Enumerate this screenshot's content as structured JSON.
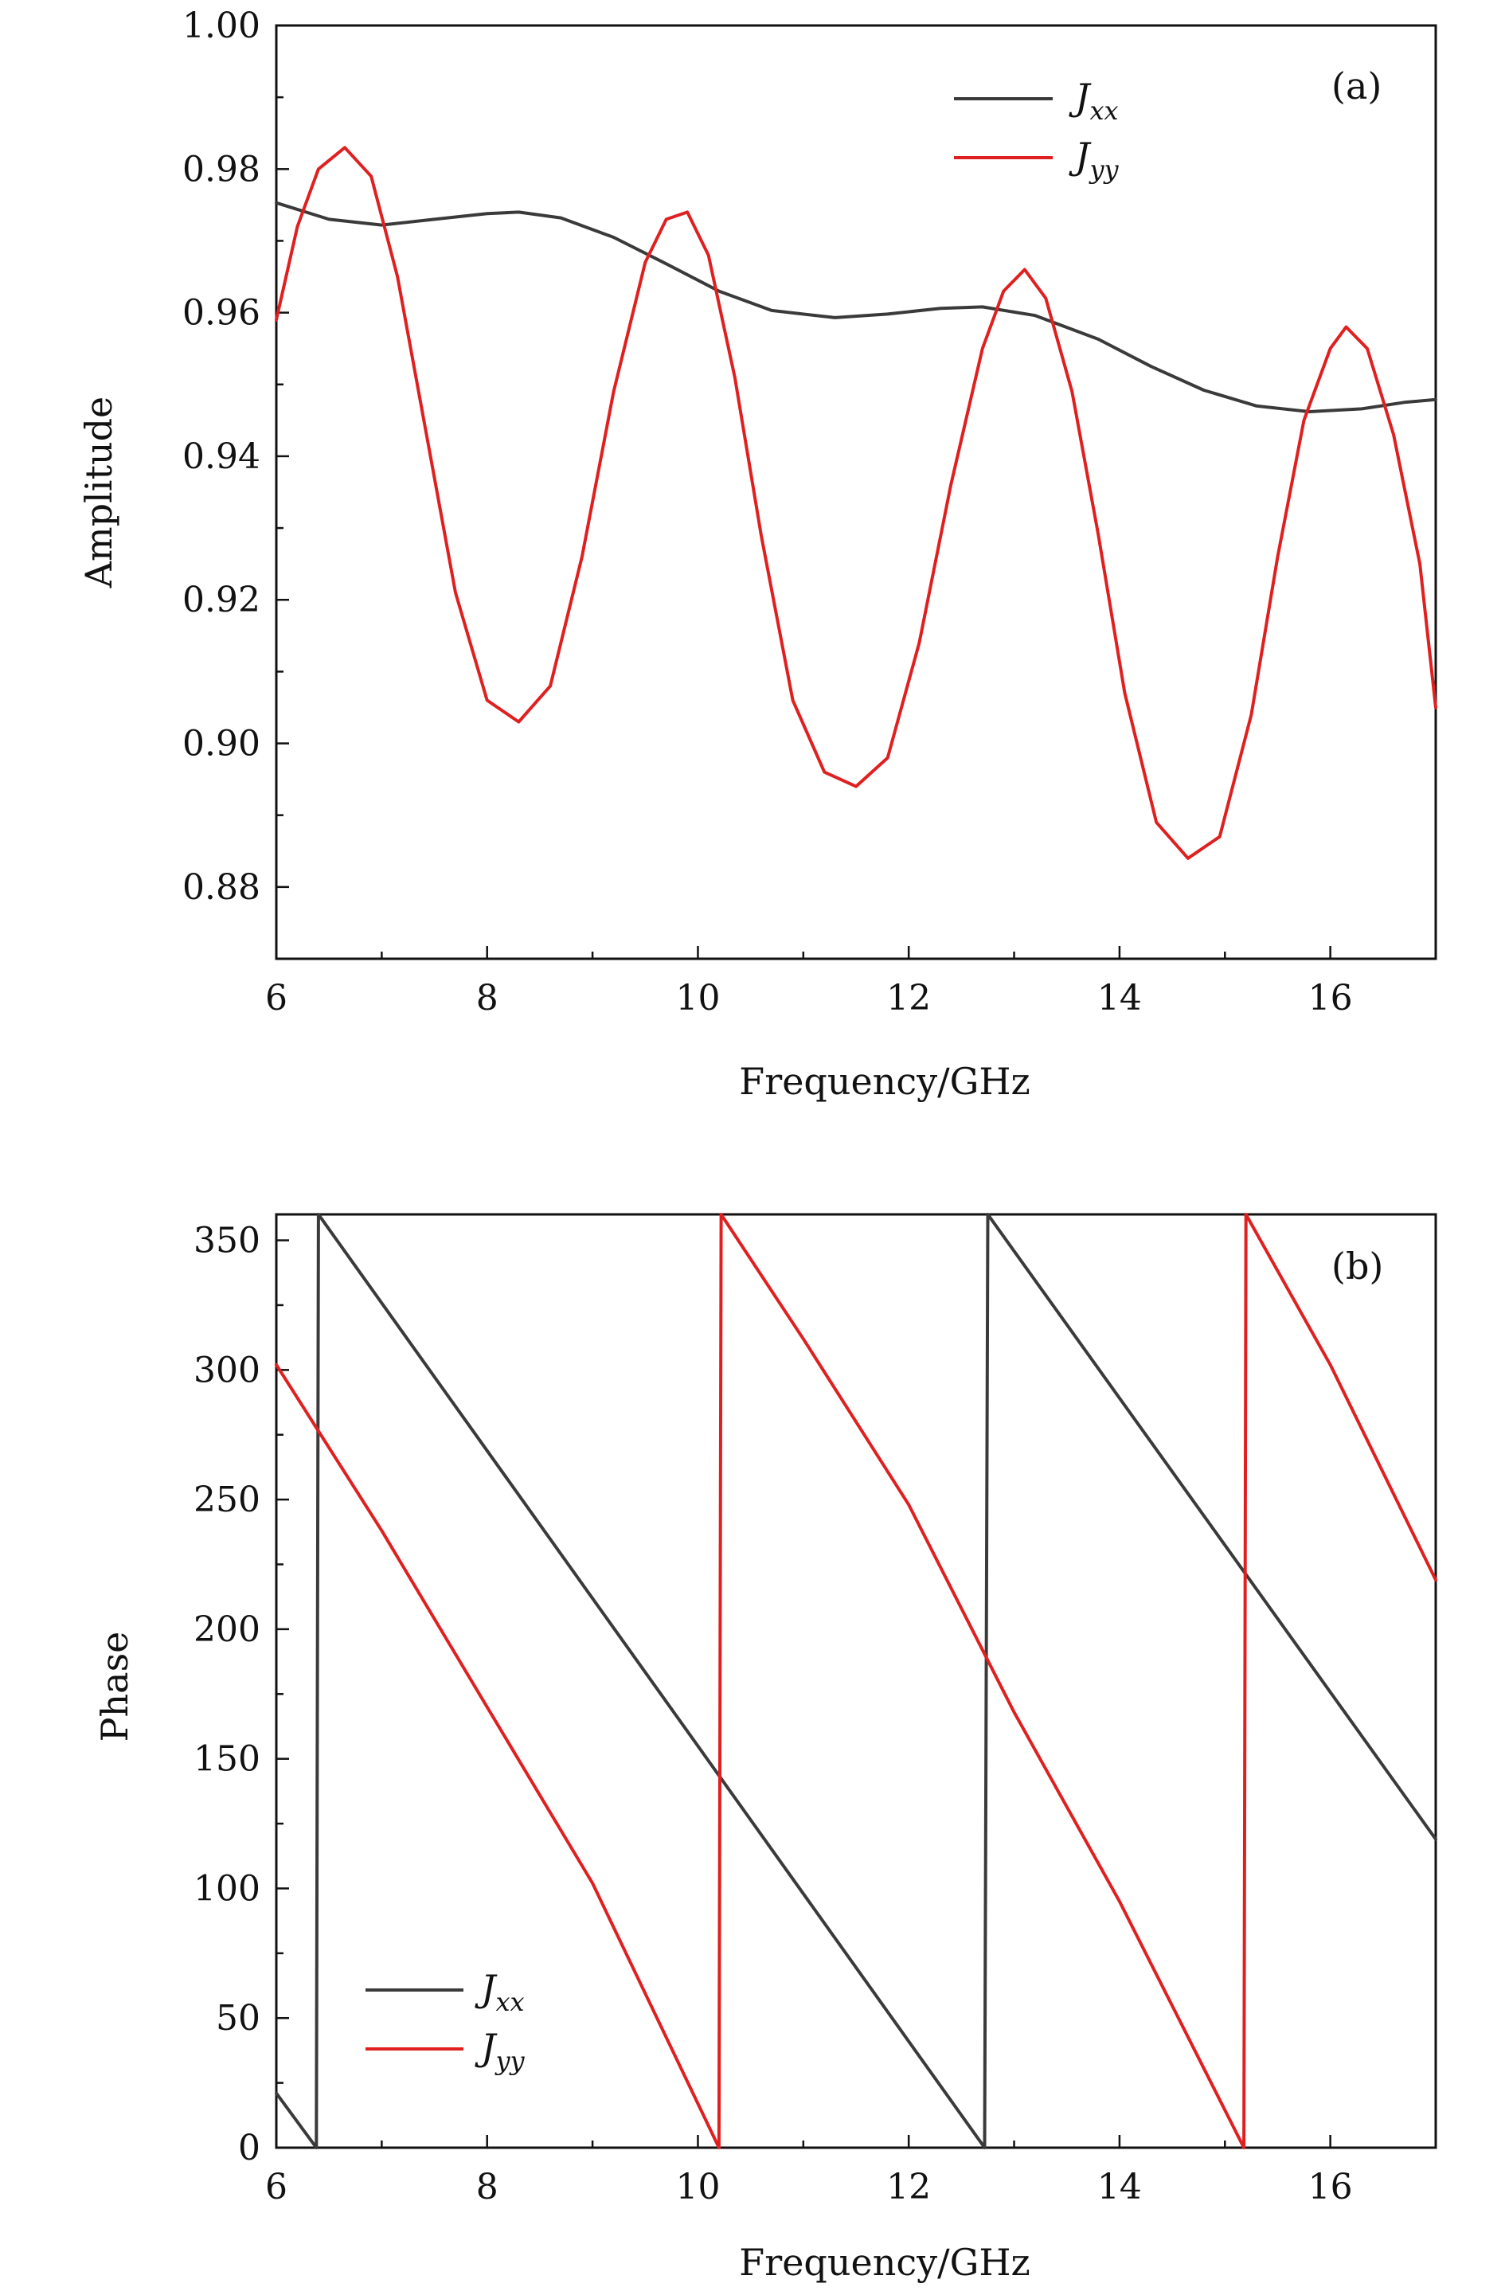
{
  "chart_data": [
    {
      "panel_label": "(a)",
      "type": "line",
      "xlabel": "Frequency/GHz",
      "ylabel": "Amplitude",
      "xlim": [
        6,
        17
      ],
      "ylim": [
        0.87,
        1.0
      ],
      "xticks": [
        6,
        8,
        10,
        12,
        14,
        16
      ],
      "yticks": [
        0.88,
        0.9,
        0.92,
        0.94,
        0.96,
        0.98,
        1.0
      ],
      "ytick_labels": [
        "0.88",
        "0.90",
        "0.92",
        "0.94",
        "0.96",
        "0.98",
        "1.00"
      ],
      "legend_position": "top-center",
      "series": [
        {
          "name": "J",
          "subscript": "xx",
          "color": "#3a3a3a",
          "x": [
            6.0,
            6.5,
            7.0,
            7.5,
            8.0,
            8.3,
            8.7,
            9.2,
            9.7,
            10.2,
            10.7,
            11.3,
            11.8,
            12.3,
            12.7,
            13.2,
            13.8,
            14.3,
            14.8,
            15.3,
            15.8,
            16.3,
            16.7,
            17.0
          ],
          "y": [
            0.9753,
            0.973,
            0.9722,
            0.973,
            0.9738,
            0.974,
            0.9732,
            0.9705,
            0.9668,
            0.963,
            0.9603,
            0.9593,
            0.9598,
            0.9606,
            0.9608,
            0.9596,
            0.9563,
            0.9525,
            0.9492,
            0.947,
            0.9462,
            0.9466,
            0.9475,
            0.9479
          ]
        },
        {
          "name": "J",
          "subscript": "yy",
          "color": "#e02020",
          "x": [
            6.0,
            6.2,
            6.4,
            6.65,
            6.9,
            7.15,
            7.4,
            7.7,
            8.0,
            8.3,
            8.6,
            8.9,
            9.2,
            9.5,
            9.7,
            9.9,
            10.1,
            10.35,
            10.6,
            10.9,
            11.2,
            11.5,
            11.8,
            12.1,
            12.4,
            12.7,
            12.9,
            13.1,
            13.3,
            13.55,
            13.8,
            14.05,
            14.35,
            14.65,
            14.95,
            15.25,
            15.5,
            15.75,
            16.0,
            16.15,
            16.35,
            16.6,
            16.85,
            17.0
          ],
          "y": [
            0.959,
            0.972,
            0.98,
            0.983,
            0.979,
            0.965,
            0.945,
            0.921,
            0.906,
            0.903,
            0.908,
            0.926,
            0.949,
            0.967,
            0.973,
            0.974,
            0.968,
            0.951,
            0.929,
            0.906,
            0.896,
            0.894,
            0.898,
            0.914,
            0.936,
            0.955,
            0.963,
            0.966,
            0.962,
            0.949,
            0.929,
            0.907,
            0.889,
            0.884,
            0.887,
            0.904,
            0.926,
            0.945,
            0.955,
            0.958,
            0.955,
            0.943,
            0.925,
            0.905
          ]
        }
      ]
    },
    {
      "panel_label": "(b)",
      "type": "line",
      "xlabel": "Frequency/GHz",
      "ylabel": "Phase",
      "xlim": [
        6,
        17
      ],
      "ylim": [
        0,
        360
      ],
      "xticks": [
        6,
        8,
        10,
        12,
        14,
        16
      ],
      "yticks": [
        0,
        50,
        100,
        150,
        200,
        250,
        300,
        350
      ],
      "ytick_labels": [
        "0",
        "50",
        "100",
        "150",
        "200",
        "250",
        "300",
        "350"
      ],
      "legend_position": "bottom-left",
      "series": [
        {
          "name": "J",
          "subscript": "xx",
          "color": "#3a3a3a",
          "x": [
            6.0,
            6.38,
            6.38,
            6.4,
            12.72,
            12.72,
            12.75,
            17.0
          ],
          "y": [
            21,
            0,
            0,
            360,
            0,
            0,
            360,
            119
          ]
        },
        {
          "name": "J",
          "subscript": "yy",
          "color": "#e02020",
          "x": [
            6.0,
            7.0,
            8.0,
            9.0,
            10.2,
            10.2,
            10.22,
            11.0,
            12.0,
            13.0,
            14.0,
            15.18,
            15.18,
            15.2,
            16.0,
            17.0
          ],
          "y": [
            302,
            238,
            170,
            102,
            0,
            0,
            360,
            312,
            248,
            168,
            95,
            0,
            0,
            360,
            302,
            219
          ]
        }
      ]
    }
  ]
}
